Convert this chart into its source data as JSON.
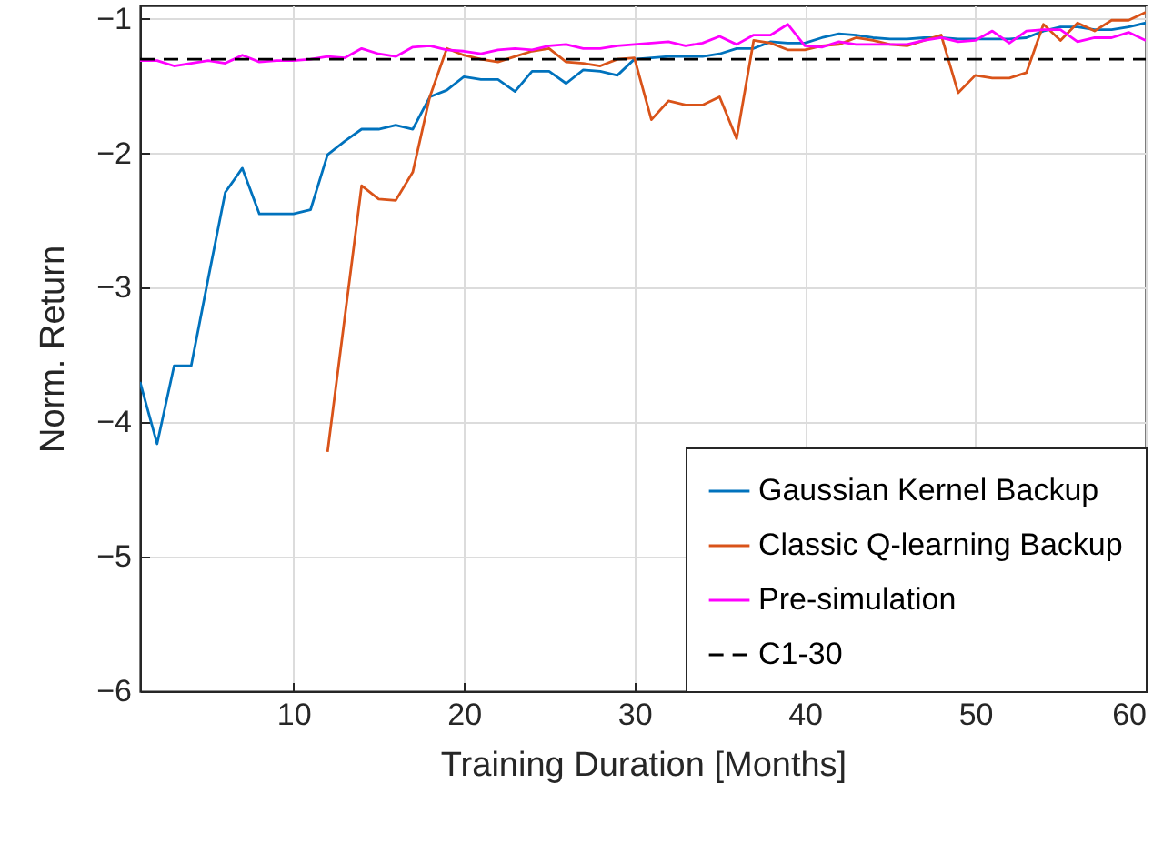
{
  "chart_data": {
    "type": "line",
    "xlabel": "Training Duration [Months]",
    "ylabel": "Norm. Return",
    "x": [
      1,
      2,
      3,
      4,
      5,
      6,
      7,
      8,
      9,
      10,
      11,
      12,
      13,
      14,
      15,
      16,
      17,
      18,
      19,
      20,
      21,
      22,
      23,
      24,
      25,
      26,
      27,
      28,
      29,
      30,
      31,
      32,
      33,
      34,
      35,
      36,
      37,
      38,
      39,
      40,
      41,
      42,
      43,
      44,
      45,
      46,
      47,
      48,
      49,
      50,
      51,
      52,
      53,
      54,
      55,
      56,
      57,
      58,
      59,
      60
    ],
    "series": [
      {
        "name": "Gaussian Kernel Backup",
        "color": "#0072bd",
        "values": [
          -3.7,
          -4.16,
          -3.58,
          -3.58,
          -2.93,
          -2.29,
          -2.11,
          -2.45,
          -2.45,
          -2.45,
          -2.42,
          -2.01,
          -1.91,
          -1.82,
          -1.82,
          -1.79,
          -1.82,
          -1.58,
          -1.53,
          -1.43,
          -1.45,
          -1.45,
          -1.54,
          -1.39,
          -1.39,
          -1.48,
          -1.38,
          -1.39,
          -1.42,
          -1.3,
          -1.29,
          -1.28,
          -1.28,
          -1.28,
          -1.26,
          -1.22,
          -1.22,
          -1.17,
          -1.18,
          -1.18,
          -1.14,
          -1.11,
          -1.12,
          -1.14,
          -1.15,
          -1.15,
          -1.14,
          -1.14,
          -1.15,
          -1.15,
          -1.15,
          -1.15,
          -1.14,
          -1.09,
          -1.06,
          -1.06,
          -1.08,
          -1.08,
          -1.06,
          -1.03
        ]
      },
      {
        "name": "Classic Q-learning Backup",
        "color": "#d95319",
        "values": [
          null,
          null,
          null,
          null,
          null,
          null,
          null,
          null,
          null,
          null,
          null,
          -4.22,
          -3.23,
          -2.24,
          -2.34,
          -2.35,
          -2.14,
          -1.58,
          -1.22,
          -1.27,
          -1.3,
          -1.32,
          -1.28,
          -1.24,
          -1.22,
          -1.32,
          -1.33,
          -1.35,
          -1.3,
          -1.29,
          -1.75,
          -1.61,
          -1.64,
          -1.64,
          -1.58,
          -1.89,
          -1.16,
          -1.18,
          -1.23,
          -1.23,
          -1.2,
          -1.19,
          -1.14,
          -1.16,
          -1.19,
          -1.2,
          -1.16,
          -1.12,
          -1.55,
          -1.42,
          -1.44,
          -1.44,
          -1.4,
          -1.04,
          -1.16,
          -1.03,
          -1.09,
          -1.01,
          -1.01,
          -0.95
        ]
      },
      {
        "name": "Pre-simulation",
        "color": "#ff00ff",
        "values": [
          -1.31,
          -1.31,
          -1.35,
          -1.33,
          -1.31,
          -1.33,
          -1.27,
          -1.32,
          -1.31,
          -1.31,
          -1.3,
          -1.28,
          -1.29,
          -1.22,
          -1.26,
          -1.28,
          -1.21,
          -1.2,
          -1.23,
          -1.24,
          -1.26,
          -1.23,
          -1.22,
          -1.23,
          -1.2,
          -1.19,
          -1.22,
          -1.22,
          -1.2,
          -1.19,
          -1.18,
          -1.17,
          -1.2,
          -1.18,
          -1.13,
          -1.19,
          -1.12,
          -1.12,
          -1.04,
          -1.2,
          -1.21,
          -1.17,
          -1.19,
          -1.19,
          -1.19,
          -1.19,
          -1.16,
          -1.14,
          -1.17,
          -1.16,
          -1.09,
          -1.18,
          -1.09,
          -1.08,
          -1.08,
          -1.17,
          -1.14,
          -1.14,
          -1.1,
          -1.16
        ]
      },
      {
        "name": "C1-30",
        "color": "#000000",
        "line_style": "dashed",
        "x": [
          1,
          60
        ],
        "values": [
          -1.3,
          -1.3
        ]
      }
    ],
    "xlim": [
      1,
      60
    ],
    "xticks": [
      10,
      20,
      30,
      40,
      50,
      60
    ],
    "ylim": [
      -6,
      -0.9
    ],
    "yticks": [
      -6,
      -5,
      -4,
      -3,
      -2,
      -1
    ],
    "grid": true,
    "legend": "bottom right",
    "marker": "none",
    "line_style": "solid"
  }
}
